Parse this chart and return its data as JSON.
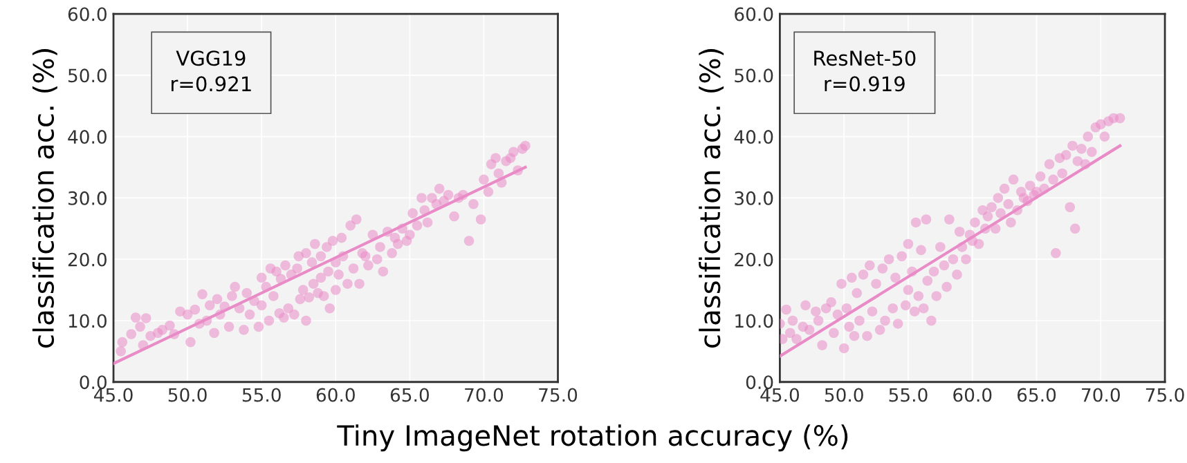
{
  "chart_data": [
    {
      "type": "scatter",
      "xlabel": "Tiny ImageNet rotation accuracy (%)",
      "ylabel": "classification acc. (%)",
      "annotations": [
        "VGG19",
        "r=0.921"
      ],
      "xlim": [
        45,
        75
      ],
      "ylim": [
        0,
        60
      ],
      "xticks": [
        {
          "value": 45,
          "label": "45.0"
        },
        {
          "value": 50,
          "label": "50.0"
        },
        {
          "value": 55,
          "label": "55.0"
        },
        {
          "value": 60,
          "label": "60.0"
        },
        {
          "value": 65,
          "label": "65.0"
        },
        {
          "value": 70,
          "label": "70.0"
        },
        {
          "value": 75,
          "label": "75.0"
        }
      ],
      "yticks": [
        {
          "value": 0,
          "label": "0.0"
        },
        {
          "value": 10,
          "label": "10.0"
        },
        {
          "value": 20,
          "label": "20.0"
        },
        {
          "value": 30,
          "label": "30.0"
        },
        {
          "value": 40,
          "label": "40.0"
        },
        {
          "value": 50,
          "label": "50.0"
        },
        {
          "value": 60,
          "label": "60.0"
        }
      ],
      "grid": true,
      "series": [
        {
          "marker": "circle",
          "color": "#e98bc6",
          "x": [
            45.5,
            45.6,
            46.2,
            46.5,
            46.8,
            47.0,
            47.2,
            47.5,
            48.0,
            48.3,
            48.8,
            49.1,
            49.5,
            50.0,
            50.2,
            50.5,
            50.8,
            51.0,
            51.3,
            51.5,
            51.8,
            52.0,
            52.2,
            52.5,
            52.8,
            53.0,
            53.2,
            53.5,
            53.8,
            54.0,
            54.2,
            54.5,
            54.8,
            55.0,
            55.0,
            55.3,
            55.5,
            55.6,
            55.8,
            56.0,
            56.2,
            56.3,
            56.5,
            56.6,
            56.8,
            57.0,
            57.2,
            57.4,
            57.5,
            57.6,
            57.8,
            58.0,
            58.0,
            58.2,
            58.4,
            58.5,
            58.6,
            58.8,
            59.0,
            59.0,
            59.2,
            59.4,
            59.5,
            59.6,
            59.8,
            60.0,
            60.0,
            60.2,
            60.4,
            60.5,
            60.8,
            61.0,
            61.2,
            61.4,
            61.6,
            61.8,
            62.0,
            62.2,
            62.5,
            62.8,
            63.0,
            63.2,
            63.5,
            63.8,
            64.0,
            64.2,
            64.5,
            64.8,
            65.0,
            65.2,
            65.5,
            65.8,
            66.0,
            66.2,
            66.5,
            66.8,
            67.0,
            67.3,
            67.6,
            68.0,
            68.3,
            68.6,
            69.0,
            69.3,
            69.8,
            70.0,
            70.3,
            70.5,
            70.8,
            71.0,
            71.2,
            71.5,
            71.8,
            72.0,
            72.3,
            72.6,
            72.8
          ],
          "values": [
            5.0,
            6.5,
            7.8,
            10.5,
            9.0,
            6.0,
            10.4,
            7.5,
            8.0,
            8.5,
            9.2,
            7.8,
            11.5,
            11.0,
            6.5,
            11.8,
            9.5,
            14.3,
            10.0,
            12.5,
            8.0,
            13.5,
            11.0,
            12.3,
            9.0,
            14.0,
            15.5,
            12.0,
            8.5,
            14.5,
            11.0,
            13.2,
            9.0,
            17.0,
            12.5,
            15.5,
            10.0,
            18.5,
            14.0,
            18.0,
            11.2,
            16.8,
            10.5,
            19.0,
            12.0,
            17.5,
            11.0,
            18.5,
            20.5,
            13.5,
            15.0,
            21.0,
            10.0,
            13.8,
            19.5,
            16.0,
            22.5,
            14.5,
            20.5,
            17.0,
            14.0,
            22.0,
            18.0,
            12.0,
            23.0,
            15.0,
            19.5,
            17.5,
            23.5,
            20.5,
            16.0,
            25.5,
            18.5,
            26.5,
            16.0,
            21.0,
            20.5,
            19.0,
            24.0,
            20.0,
            22.0,
            18.0,
            24.5,
            21.0,
            23.5,
            22.5,
            25.0,
            23.0,
            24.0,
            27.5,
            25.5,
            30.0,
            28.0,
            26.0,
            30.0,
            29.0,
            31.5,
            29.5,
            30.5,
            27.0,
            30.0,
            30.5,
            23.0,
            29.0,
            26.5,
            33.0,
            31.0,
            35.5,
            36.5,
            34.0,
            32.5,
            36.0,
            36.5,
            37.5,
            34.5,
            38.0,
            38.5
          ]
        },
        {
          "type": "line",
          "color": "#e98bc6",
          "x": [
            45,
            72.8
          ],
          "values": [
            3.0,
            35.0
          ]
        }
      ]
    },
    {
      "type": "scatter",
      "ylabel": "classification acc. (%)",
      "annotations": [
        "ResNet-50",
        "r=0.919"
      ],
      "xlim": [
        45,
        75
      ],
      "ylim": [
        0,
        60
      ],
      "xticks": [
        {
          "value": 45,
          "label": "45.0"
        },
        {
          "value": 50,
          "label": "50.0"
        },
        {
          "value": 55,
          "label": "55.0"
        },
        {
          "value": 60,
          "label": "60.0"
        },
        {
          "value": 65,
          "label": "65.0"
        },
        {
          "value": 70,
          "label": "70.0"
        },
        {
          "value": 75,
          "label": "75.0"
        }
      ],
      "yticks": [
        {
          "value": 0,
          "label": "0.0"
        },
        {
          "value": 10,
          "label": "10.0"
        },
        {
          "value": 20,
          "label": "20.0"
        },
        {
          "value": 30,
          "label": "30.0"
        },
        {
          "value": 40,
          "label": "40.0"
        },
        {
          "value": 50,
          "label": "50.0"
        },
        {
          "value": 60,
          "label": "60.0"
        }
      ],
      "grid": true,
      "series": [
        {
          "marker": "circle",
          "color": "#e98bc6",
          "x": [
            45.0,
            45.2,
            45.5,
            45.8,
            46.0,
            46.3,
            46.8,
            47.0,
            47.3,
            47.8,
            48.0,
            48.3,
            48.6,
            49.0,
            49.2,
            49.5,
            49.8,
            50.0,
            50.2,
            50.4,
            50.6,
            50.8,
            51.0,
            51.2,
            51.5,
            51.8,
            52.0,
            52.2,
            52.5,
            52.8,
            53.0,
            53.2,
            53.5,
            53.8,
            54.0,
            54.2,
            54.5,
            54.8,
            55.0,
            55.0,
            55.3,
            55.5,
            55.6,
            55.8,
            56.0,
            56.2,
            56.4,
            56.5,
            56.8,
            57.0,
            57.2,
            57.5,
            57.8,
            58.0,
            58.2,
            58.5,
            58.8,
            59.0,
            59.2,
            59.5,
            59.8,
            60.0,
            60.2,
            60.5,
            60.8,
            61.0,
            61.2,
            61.5,
            61.8,
            62.0,
            62.2,
            62.5,
            62.8,
            63.0,
            63.2,
            63.5,
            63.8,
            64.0,
            64.3,
            64.5,
            64.8,
            65.0,
            65.3,
            65.6,
            66.0,
            66.3,
            66.5,
            66.8,
            67.0,
            67.3,
            67.6,
            67.8,
            68.0,
            68.2,
            68.5,
            68.8,
            69.0,
            69.3,
            69.6,
            70.0,
            70.3,
            70.6,
            71.0,
            71.5
          ],
          "values": [
            9.5,
            7.0,
            11.8,
            8.0,
            10.0,
            7.0,
            9.0,
            12.5,
            8.5,
            11.5,
            10.0,
            6.0,
            12.0,
            13.0,
            8.0,
            11.0,
            16.0,
            5.5,
            12.0,
            9.0,
            17.0,
            7.5,
            14.5,
            10.0,
            17.5,
            7.5,
            19.0,
            11.5,
            16.0,
            8.5,
            18.5,
            10.0,
            20.0,
            12.0,
            17.0,
            9.5,
            20.5,
            12.5,
            22.5,
            15.0,
            18.0,
            11.5,
            26.0,
            14.0,
            21.5,
            12.0,
            26.5,
            16.5,
            10.0,
            18.0,
            14.0,
            22.0,
            19.0,
            15.5,
            26.5,
            20.0,
            17.5,
            24.5,
            22.0,
            20.0,
            24.0,
            23.0,
            26.0,
            22.5,
            28.0,
            25.0,
            27.0,
            28.5,
            25.0,
            30.0,
            27.5,
            31.5,
            29.0,
            26.0,
            33.0,
            28.0,
            31.0,
            30.0,
            29.5,
            32.0,
            30.5,
            31.0,
            33.5,
            31.5,
            35.5,
            33.0,
            21.0,
            36.5,
            34.0,
            37.0,
            28.5,
            38.5,
            25.0,
            36.0,
            38.0,
            35.5,
            40.0,
            37.5,
            41.5,
            42.0,
            40.0,
            42.5,
            43.0,
            43.0
          ]
        },
        {
          "type": "line",
          "color": "#e98bc6",
          "x": [
            45,
            71.5
          ],
          "values": [
            4.2,
            38.5
          ]
        }
      ]
    }
  ]
}
